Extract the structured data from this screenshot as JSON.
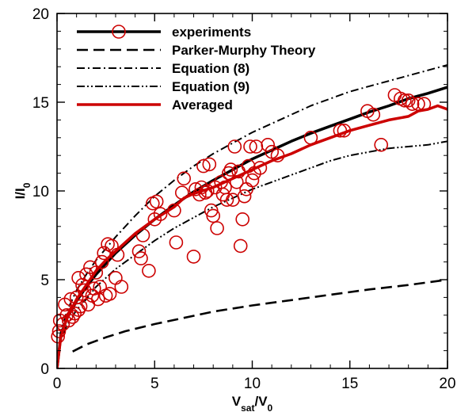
{
  "chart_data": {
    "type": "scatter",
    "xlim": [
      0,
      20
    ],
    "ylim": [
      0,
      20
    ],
    "xticks": [
      "0",
      "5",
      "10",
      "15",
      "20"
    ],
    "yticks": [
      "0",
      "5",
      "10",
      "15",
      "20"
    ],
    "xlabel": {
      "main": "V",
      "sub1": "sat",
      "mid": "/V",
      "sub2": "0"
    },
    "ylabel": {
      "main": "I/I",
      "sub": "0"
    },
    "grid": false,
    "legend_position": "top-left",
    "colors": {
      "red": "#cc0000",
      "black": "#000000"
    },
    "series": [
      {
        "name": "experiments",
        "marker": "open-circle",
        "points": [
          [
            0.05,
            1.8
          ],
          [
            0.1,
            2.1
          ],
          [
            0.15,
            2.7
          ],
          [
            0.3,
            2.5
          ],
          [
            0.4,
            3.6
          ],
          [
            0.5,
            3.0
          ],
          [
            0.6,
            2.7
          ],
          [
            0.7,
            3.9
          ],
          [
            0.8,
            2.9
          ],
          [
            0.9,
            3.1
          ],
          [
            1.0,
            4.0
          ],
          [
            1.1,
            3.3
          ],
          [
            1.2,
            3.5
          ],
          [
            1.1,
            5.1
          ],
          [
            1.3,
            4.7
          ],
          [
            1.4,
            4.4
          ],
          [
            1.5,
            5.3
          ],
          [
            1.6,
            3.6
          ],
          [
            1.7,
            5.7
          ],
          [
            1.8,
            4.1
          ],
          [
            1.9,
            4.5
          ],
          [
            2.0,
            5.4
          ],
          [
            2.1,
            3.9
          ],
          [
            2.2,
            4.6
          ],
          [
            2.3,
            6.0
          ],
          [
            2.4,
            6.5
          ],
          [
            2.5,
            4.1
          ],
          [
            2.6,
            7.0
          ],
          [
            2.7,
            4.2
          ],
          [
            2.8,
            6.9
          ],
          [
            3.0,
            5.1
          ],
          [
            3.1,
            6.4
          ],
          [
            3.3,
            4.6
          ],
          [
            4.2,
            6.6
          ],
          [
            4.3,
            6.2
          ],
          [
            4.4,
            7.5
          ],
          [
            4.7,
            5.5
          ],
          [
            4.9,
            9.3
          ],
          [
            5.0,
            8.4
          ],
          [
            5.1,
            9.4
          ],
          [
            5.3,
            8.7
          ],
          [
            6.0,
            8.9
          ],
          [
            6.1,
            7.1
          ],
          [
            6.4,
            9.9
          ],
          [
            6.5,
            10.7
          ],
          [
            7.0,
            6.3
          ],
          [
            7.1,
            10.1
          ],
          [
            7.3,
            9.8
          ],
          [
            7.4,
            10.2
          ],
          [
            7.5,
            11.4
          ],
          [
            7.6,
            9.9
          ],
          [
            7.7,
            10.0
          ],
          [
            7.8,
            11.5
          ],
          [
            7.9,
            8.9
          ],
          [
            8.0,
            8.6
          ],
          [
            8.1,
            10.2
          ],
          [
            8.2,
            7.9
          ],
          [
            8.4,
            10.5
          ],
          [
            8.5,
            9.8
          ],
          [
            8.6,
            10.2
          ],
          [
            8.7,
            9.5
          ],
          [
            8.8,
            11.0
          ],
          [
            8.9,
            11.2
          ],
          [
            9.0,
            9.5
          ],
          [
            9.1,
            12.5
          ],
          [
            9.2,
            10.5
          ],
          [
            9.3,
            11.1
          ],
          [
            9.4,
            6.9
          ],
          [
            9.5,
            8.4
          ],
          [
            9.6,
            9.7
          ],
          [
            9.7,
            10.1
          ],
          [
            9.8,
            11.4
          ],
          [
            9.9,
            12.5
          ],
          [
            10.0,
            10.6
          ],
          [
            10.1,
            11.0
          ],
          [
            10.2,
            12.5
          ],
          [
            10.4,
            11.3
          ],
          [
            10.8,
            12.6
          ],
          [
            11.0,
            12.2
          ],
          [
            11.3,
            12.0
          ],
          [
            13.0,
            13.0
          ],
          [
            14.5,
            13.4
          ],
          [
            14.7,
            13.4
          ],
          [
            15.9,
            14.5
          ],
          [
            16.2,
            14.3
          ],
          [
            16.6,
            12.6
          ],
          [
            17.3,
            15.4
          ],
          [
            17.6,
            15.2
          ],
          [
            17.8,
            15.1
          ],
          [
            18.0,
            15.1
          ],
          [
            18.2,
            14.9
          ],
          [
            18.5,
            14.9
          ],
          [
            18.8,
            14.9
          ]
        ]
      },
      {
        "name": "Parker-Murphy Theory",
        "style": "dashed",
        "line": [
          [
            0.8,
            0.95
          ],
          [
            1.5,
            1.35
          ],
          [
            2.5,
            1.75
          ],
          [
            3.5,
            2.1
          ],
          [
            5,
            2.5
          ],
          [
            6.5,
            2.85
          ],
          [
            8,
            3.2
          ],
          [
            10,
            3.55
          ],
          [
            12,
            3.85
          ],
          [
            14,
            4.15
          ],
          [
            16,
            4.45
          ],
          [
            18,
            4.7
          ],
          [
            20,
            5.0
          ]
        ]
      },
      {
        "name": "Equation (8)",
        "style": "dash-dot",
        "line": [
          [
            0,
            0
          ],
          [
            0.2,
            2.1
          ],
          [
            0.5,
            3.2
          ],
          [
            1,
            4.4
          ],
          [
            1.5,
            5.3
          ],
          [
            2,
            6.1
          ],
          [
            3,
            7.4
          ],
          [
            4,
            8.6
          ],
          [
            5,
            9.7
          ],
          [
            6,
            10.6
          ],
          [
            7,
            11.4
          ],
          [
            8,
            12.1
          ],
          [
            9,
            12.7
          ],
          [
            10,
            13.3
          ],
          [
            11,
            13.8
          ],
          [
            12,
            14.3
          ],
          [
            13,
            14.8
          ],
          [
            14,
            15.2
          ],
          [
            15,
            15.6
          ],
          [
            16,
            15.9
          ],
          [
            17,
            16.2
          ],
          [
            18,
            16.5
          ],
          [
            19,
            16.8
          ],
          [
            20,
            17.1
          ]
        ]
      },
      {
        "name": "Equation (9)",
        "style": "dash-dot-dot",
        "line": [
          [
            0,
            0
          ],
          [
            0.2,
            1.6
          ],
          [
            0.5,
            2.4
          ],
          [
            1,
            3.3
          ],
          [
            1.5,
            3.9
          ],
          [
            2,
            4.6
          ],
          [
            3,
            5.6
          ],
          [
            4,
            6.4
          ],
          [
            5,
            7.2
          ],
          [
            6,
            7.9
          ],
          [
            7,
            8.5
          ],
          [
            8,
            9.1
          ],
          [
            9,
            9.6
          ],
          [
            10,
            10.1
          ],
          [
            11,
            10.5
          ],
          [
            12,
            10.9
          ],
          [
            13,
            11.3
          ],
          [
            14,
            11.7
          ],
          [
            15,
            12.0
          ],
          [
            16,
            12.2
          ],
          [
            17,
            12.4
          ],
          [
            18,
            12.5
          ],
          [
            19,
            12.6
          ],
          [
            20,
            12.8
          ]
        ]
      },
      {
        "name": "experiments",
        "style": "solid",
        "line": [
          [
            0,
            0
          ],
          [
            0.2,
            1.9
          ],
          [
            0.5,
            2.8
          ],
          [
            1,
            3.8
          ],
          [
            1.5,
            4.6
          ],
          [
            2,
            5.3
          ],
          [
            3,
            6.5
          ],
          [
            4,
            7.5
          ],
          [
            5,
            8.4
          ],
          [
            6,
            9.2
          ],
          [
            7,
            9.95
          ],
          [
            8,
            10.6
          ],
          [
            9,
            11.2
          ],
          [
            10,
            11.8
          ],
          [
            11,
            12.3
          ],
          [
            12,
            12.8
          ],
          [
            13,
            13.25
          ],
          [
            14,
            13.65
          ],
          [
            15,
            14.05
          ],
          [
            16,
            14.45
          ],
          [
            17,
            14.8
          ],
          [
            18,
            15.2
          ],
          [
            19,
            15.5
          ],
          [
            20,
            15.85
          ]
        ]
      },
      {
        "name": "Averaged",
        "style": "solid",
        "line": [
          [
            0,
            0
          ],
          [
            0.2,
            1.8
          ],
          [
            0.5,
            2.8
          ],
          [
            1,
            3.9
          ],
          [
            1.5,
            4.7
          ],
          [
            2,
            5.5
          ],
          [
            2.5,
            6.1
          ],
          [
            3,
            6.6
          ],
          [
            4,
            7.6
          ],
          [
            5,
            8.4
          ],
          [
            6,
            9.1
          ],
          [
            6.5,
            9.6
          ],
          [
            7,
            9.85
          ],
          [
            8,
            10.2
          ],
          [
            9,
            10.7
          ],
          [
            10,
            11.2
          ],
          [
            11,
            11.7
          ],
          [
            12,
            12.1
          ],
          [
            13,
            12.6
          ],
          [
            14,
            13.0
          ],
          [
            15,
            13.4
          ],
          [
            16,
            13.7
          ],
          [
            17,
            14.0
          ],
          [
            18,
            14.2
          ],
          [
            18.5,
            14.5
          ],
          [
            19,
            14.6
          ],
          [
            19.5,
            14.8
          ],
          [
            20,
            14.6
          ]
        ]
      }
    ],
    "legend": [
      {
        "label": "experiments",
        "style": "circle-line"
      },
      {
        "label": "Parker-Murphy Theory",
        "style": "dashed"
      },
      {
        "label": "Equation (8)",
        "style": "dash-dot"
      },
      {
        "label": "Equation (9)",
        "style": "dash-dot-dot"
      },
      {
        "label": "Averaged",
        "style": "red-solid"
      }
    ]
  }
}
